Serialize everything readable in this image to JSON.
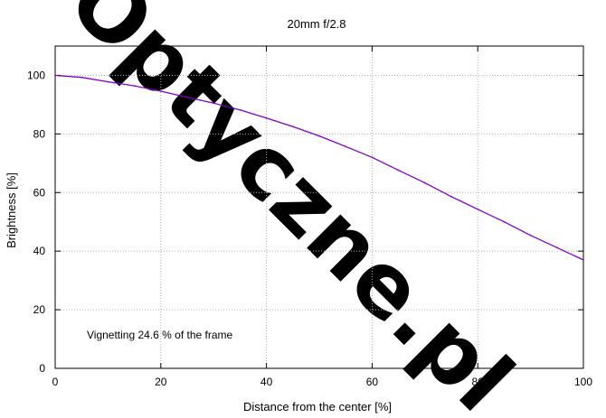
{
  "chart_data": {
    "type": "line",
    "title": "20mm f/2.8",
    "xlabel": "Distance from the center [%]",
    "ylabel": "Brightness [%]",
    "xlim": [
      0,
      100
    ],
    "ylim": [
      0,
      110
    ],
    "x_ticks": [
      "0",
      "20",
      "40",
      "60",
      "80",
      "100"
    ],
    "y_ticks": [
      "0",
      "20",
      "40",
      "60",
      "80",
      "100"
    ],
    "grid": true,
    "legend": "none",
    "annotation": "Vignetting 24.6 % of the frame",
    "series": [
      {
        "color": "#8000c0",
        "x": [
          0,
          5,
          10,
          15,
          20,
          25,
          30,
          35,
          40,
          45,
          50,
          55,
          60,
          65,
          70,
          75,
          80,
          85,
          90,
          95,
          100
        ],
        "y": [
          100,
          99.3,
          97.8,
          96.4,
          94.6,
          92.5,
          90.5,
          88.2,
          85.4,
          82.5,
          79.3,
          75.7,
          72.0,
          67.6,
          63.3,
          58.6,
          54.3,
          50.0,
          45.4,
          41.2,
          37.0
        ]
      }
    ]
  },
  "watermark": {
    "text": "Optyczne.pl",
    "color": "#ffe4e4"
  }
}
